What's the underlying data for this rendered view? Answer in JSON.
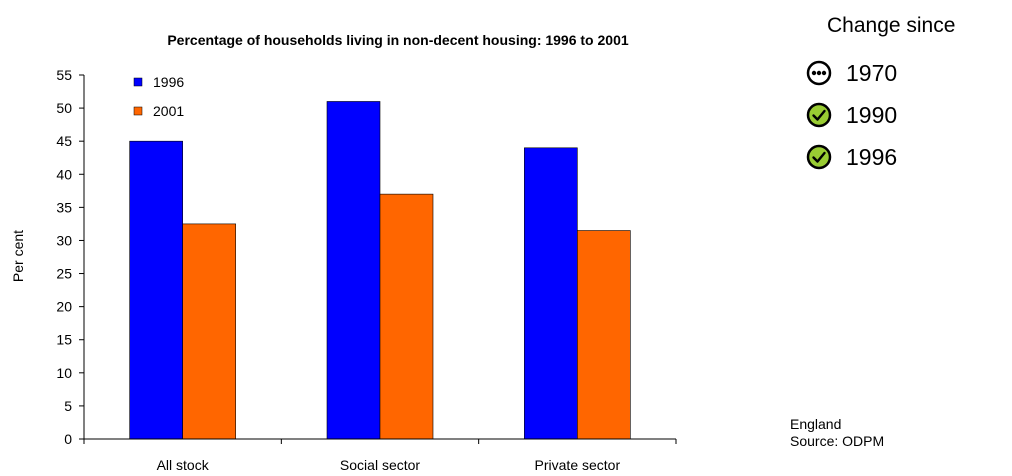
{
  "chart_data": {
    "type": "bar",
    "title": "Percentage of households living in non-decent housing: 1996 to 2001",
    "ylabel": "Per cent",
    "xlabel": "",
    "ylim": [
      0,
      55
    ],
    "yticks": [
      0,
      5,
      10,
      15,
      20,
      25,
      30,
      35,
      40,
      45,
      50,
      55
    ],
    "categories": [
      "All stock",
      "Social sector",
      "Private sector"
    ],
    "series": [
      {
        "name": "1996",
        "color": "#0000ff",
        "values": [
          45,
          51,
          44
        ]
      },
      {
        "name": "2001",
        "color": "#ff6600",
        "values": [
          32.5,
          37,
          31.5
        ]
      }
    ],
    "legend_position": "top-left",
    "grid": false
  },
  "panel": {
    "title": "Change since",
    "items": [
      {
        "year": "1970",
        "icon": "ellipsis-circle-icon",
        "color": "#ffffff"
      },
      {
        "year": "1990",
        "icon": "check-circle-icon",
        "color": "#99cc33"
      },
      {
        "year": "1996",
        "icon": "check-circle-icon",
        "color": "#99cc33"
      }
    ]
  },
  "footnote": {
    "region": "England",
    "source": "Source: ODPM"
  }
}
